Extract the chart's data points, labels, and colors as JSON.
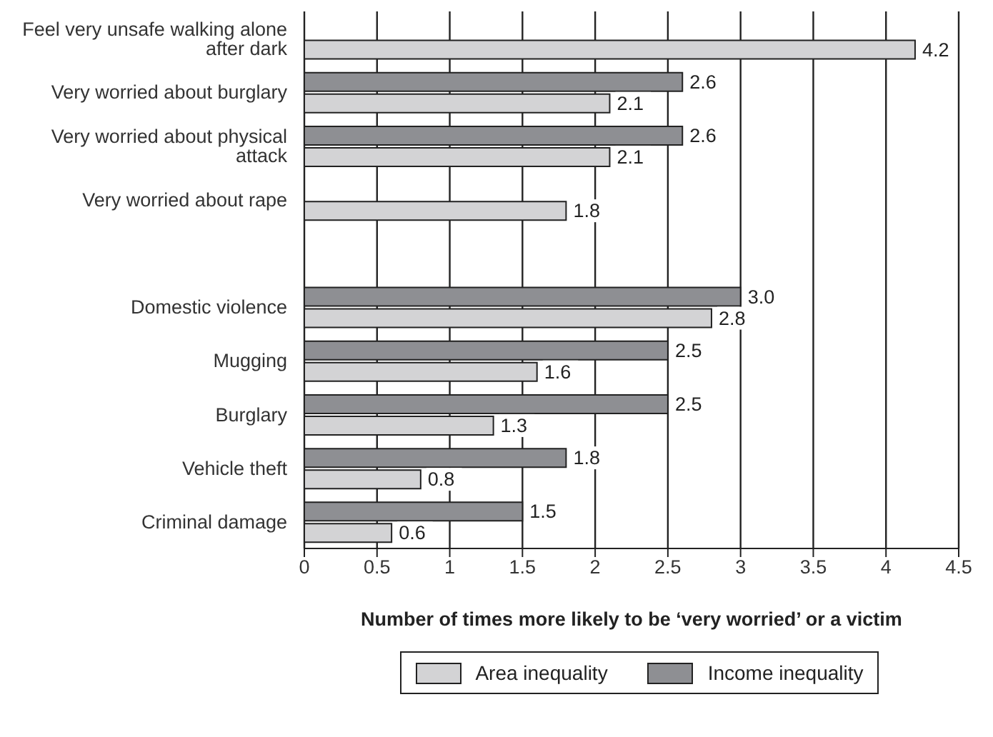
{
  "chart_data": {
    "type": "bar",
    "orientation": "horizontal",
    "xlabel": "Number of times more likely to be ‘very worried’ or a victim",
    "categories": [
      "Feel very unsafe walking alone after dark",
      "Very worried about burglary",
      "Very worried about physical attack",
      "Very worried about rape",
      null,
      "Domestic violence",
      "Mugging",
      "Burglary",
      "Vehicle theft",
      "Criminal damage"
    ],
    "series": [
      {
        "name": "Area inequality",
        "color": "#d3d3d5",
        "values": [
          4.2,
          2.1,
          2.1,
          1.8,
          null,
          2.8,
          1.6,
          1.3,
          0.8,
          0.6
        ],
        "value_labels": [
          "4.2",
          "2.1",
          "2.1",
          "1.8",
          null,
          "2.8",
          "1.6",
          "1.3",
          "0.8",
          "0.6"
        ]
      },
      {
        "name": "Income inequality",
        "color": "#8e8f93",
        "values": [
          null,
          2.6,
          2.6,
          null,
          null,
          3.0,
          2.5,
          2.5,
          1.8,
          1.5
        ],
        "value_labels": [
          null,
          "2.6",
          "2.6",
          null,
          null,
          "3.0",
          "2.5",
          "2.5",
          "1.8",
          "1.5"
        ]
      }
    ],
    "xlim": [
      0,
      4.5
    ],
    "xticks": [
      0,
      0.5,
      1,
      1.5,
      2,
      2.5,
      3,
      3.5,
      4,
      4.5
    ],
    "grid": "x",
    "legend": "bottom"
  }
}
